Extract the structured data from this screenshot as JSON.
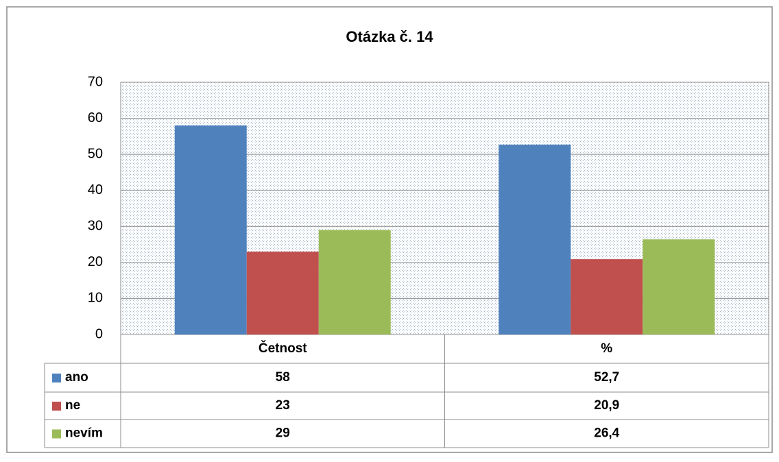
{
  "chart_data": {
    "type": "bar",
    "title": "Otázka č. 14",
    "categories": [
      "Četnost",
      "%"
    ],
    "series": [
      {
        "name": "ano",
        "color": "#4f81bd",
        "values": [
          58,
          52.7
        ],
        "value_labels": [
          "58",
          "52,7"
        ]
      },
      {
        "name": "ne",
        "color": "#c0504d",
        "values": [
          23,
          20.9
        ],
        "value_labels": [
          "23",
          "20,9"
        ]
      },
      {
        "name": "nevím",
        "color": "#9bbb59",
        "values": [
          29,
          26.4
        ],
        "value_labels": [
          "29",
          "26,4"
        ]
      }
    ],
    "ylim": [
      0,
      70
    ],
    "yticks": [
      0,
      10,
      20,
      30,
      40,
      50,
      60,
      70
    ],
    "grid": true
  }
}
